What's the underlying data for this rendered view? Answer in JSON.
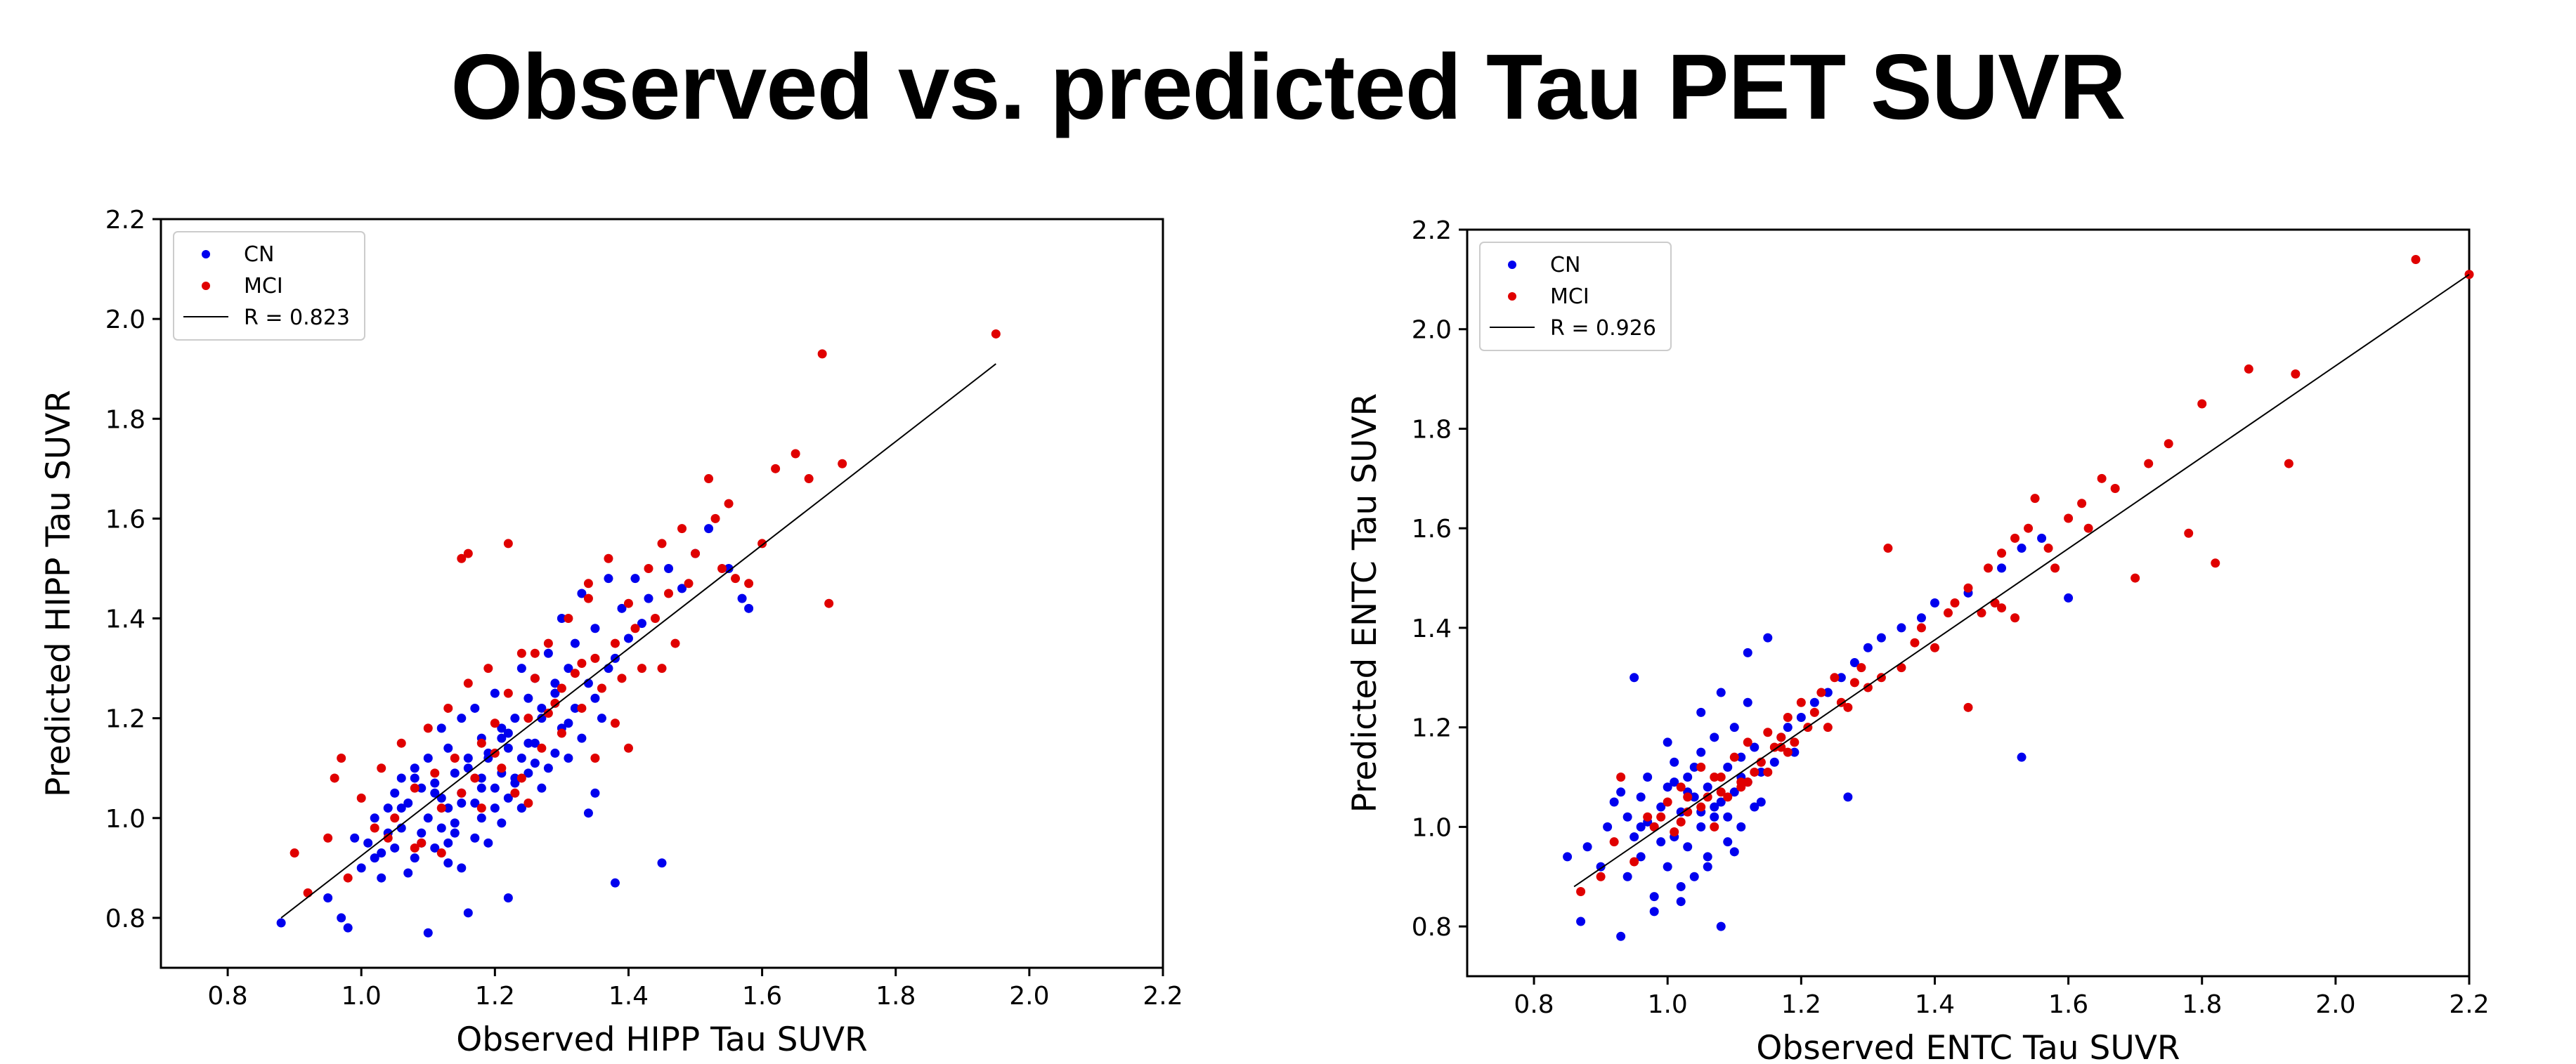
{
  "figure": {
    "title": "Observed vs. predicted Tau PET SUVR"
  },
  "colors": {
    "CN": "#0000ee",
    "MCI": "#e00000",
    "fit_line": "#000000",
    "axes": "#000000",
    "background": "#ffffff"
  },
  "chart_data": [
    {
      "type": "scatter",
      "title": "",
      "xlabel": "Observed HIPP Tau SUVR",
      "ylabel": "Predicted HIPP Tau SUVR",
      "xlim": [
        0.7,
        2.2
      ],
      "ylim": [
        0.7,
        2.2
      ],
      "xticks": [
        0.8,
        1.0,
        1.2,
        1.4,
        1.6,
        1.8,
        2.0,
        2.2
      ],
      "yticks": [
        0.8,
        1.0,
        1.2,
        1.4,
        1.6,
        1.8,
        2.0,
        2.2
      ],
      "grid": false,
      "legend": {
        "position": "top-left",
        "entries": [
          "CN",
          "MCI",
          "R = 0.823"
        ]
      },
      "fit_line": {
        "label": "R = 0.823",
        "x": [
          0.88,
          1.95
        ],
        "y": [
          0.8,
          1.91
        ]
      },
      "series": [
        {
          "name": "CN",
          "x": [
            0.88,
            0.95,
            0.97,
            0.98,
            0.99,
            1.0,
            1.01,
            1.02,
            1.02,
            1.03,
            1.04,
            1.04,
            1.05,
            1.05,
            1.06,
            1.06,
            1.07,
            1.07,
            1.08,
            1.08,
            1.09,
            1.09,
            1.1,
            1.1,
            1.1,
            1.11,
            1.11,
            1.12,
            1.12,
            1.12,
            1.13,
            1.13,
            1.13,
            1.14,
            1.14,
            1.15,
            1.15,
            1.15,
            1.16,
            1.16,
            1.17,
            1.17,
            1.17,
            1.18,
            1.18,
            1.18,
            1.19,
            1.19,
            1.2,
            1.2,
            1.2,
            1.21,
            1.21,
            1.21,
            1.22,
            1.22,
            1.22,
            1.23,
            1.23,
            1.24,
            1.24,
            1.24,
            1.25,
            1.25,
            1.26,
            1.26,
            1.27,
            1.27,
            1.28,
            1.28,
            1.29,
            1.29,
            1.3,
            1.3,
            1.31,
            1.31,
            1.32,
            1.32,
            1.33,
            1.33,
            1.34,
            1.35,
            1.35,
            1.36,
            1.37,
            1.38,
            1.38,
            1.39,
            1.4,
            1.41,
            1.42,
            1.43,
            1.45,
            1.46,
            1.48,
            1.5,
            1.52,
            1.55,
            1.57,
            1.58,
            1.22,
            1.27,
            1.18,
            1.08,
            1.14,
            1.19,
            1.24,
            1.31,
            1.37,
            1.11,
            1.21,
            1.29,
            1.34,
            1.26,
            1.16,
            1.06,
            1.03,
            1.13,
            1.23,
            1.09,
            1.35,
            1.25,
            1.15
          ],
          "y": [
            0.79,
            0.84,
            0.8,
            0.78,
            0.96,
            0.9,
            0.95,
            0.92,
            1.0,
            0.93,
            0.97,
            1.02,
            0.94,
            1.05,
            0.98,
            1.08,
            0.89,
            1.03,
            0.92,
            1.1,
            0.95,
            1.06,
            0.77,
            1.0,
            1.12,
            0.94,
            1.07,
            0.98,
            1.04,
            1.18,
            0.91,
            1.02,
            1.14,
            0.97,
            1.09,
            0.9,
            1.05,
            1.2,
            0.81,
            1.1,
            0.96,
            1.03,
            1.22,
            1.0,
            1.08,
            1.16,
            0.95,
            1.12,
            1.02,
            1.06,
            1.25,
            0.99,
            1.09,
            1.18,
            0.84,
            1.04,
            1.14,
            1.07,
            1.2,
            1.02,
            1.12,
            1.3,
            1.09,
            1.24,
            1.15,
            1.28,
            1.06,
            1.2,
            1.1,
            1.33,
            1.13,
            1.25,
            1.18,
            1.4,
            1.12,
            1.3,
            1.22,
            1.35,
            1.16,
            1.45,
            1.27,
            1.05,
            1.38,
            1.2,
            1.48,
            0.87,
            1.32,
            1.42,
            1.36,
            1.48,
            1.39,
            1.44,
            0.91,
            1.5,
            1.46,
            1.53,
            1.58,
            1.5,
            1.44,
            1.42,
            1.17,
            1.22,
            1.06,
            1.08,
            0.99,
            1.13,
            1.02,
            1.19,
            1.3,
            1.05,
            1.16,
            1.27,
            1.01,
            1.11,
            1.12,
            1.02,
            0.88,
            0.95,
            1.08,
            0.97,
            1.24,
            1.15,
            1.03
          ]
        },
        {
          "name": "MCI",
          "x": [
            0.9,
            0.92,
            0.95,
            0.97,
            0.98,
            1.0,
            1.02,
            1.03,
            1.05,
            1.06,
            1.08,
            1.09,
            1.1,
            1.11,
            1.12,
            1.13,
            1.14,
            1.15,
            1.16,
            1.17,
            1.18,
            1.19,
            1.2,
            1.21,
            1.22,
            1.23,
            1.24,
            1.25,
            1.26,
            1.27,
            1.28,
            1.29,
            1.3,
            1.31,
            1.32,
            1.33,
            1.34,
            1.35,
            1.36,
            1.37,
            1.38,
            1.39,
            1.4,
            1.41,
            1.42,
            1.43,
            1.44,
            1.45,
            1.46,
            1.47,
            1.48,
            1.49,
            1.5,
            1.52,
            1.53,
            1.54,
            1.55,
            1.56,
            1.58,
            1.6,
            1.62,
            1.65,
            1.67,
            1.69,
            1.7,
            1.72,
            1.95,
            1.15,
            1.16,
            1.22,
            1.28,
            1.33,
            1.38,
            1.2,
            1.25,
            1.3,
            1.35,
            1.12,
            1.18,
            1.4,
            1.45,
            1.24,
            1.08,
            1.04,
            0.96,
            1.26,
            1.34
          ],
          "y": [
            0.93,
            0.85,
            0.96,
            1.12,
            0.88,
            1.04,
            0.98,
            1.1,
            1.0,
            1.15,
            1.06,
            0.95,
            1.18,
            1.09,
            1.02,
            1.22,
            1.12,
            1.05,
            1.27,
            1.08,
            1.15,
            1.3,
            1.19,
            1.1,
            1.25,
            1.05,
            1.33,
            1.2,
            1.28,
            1.14,
            1.35,
            1.23,
            1.17,
            1.4,
            1.29,
            1.22,
            1.47,
            1.32,
            1.26,
            1.52,
            1.35,
            1.28,
            1.43,
            1.38,
            1.3,
            1.5,
            1.4,
            1.55,
            1.45,
            1.35,
            1.58,
            1.47,
            1.53,
            1.68,
            1.6,
            1.5,
            1.63,
            1.48,
            1.47,
            1.55,
            1.7,
            1.73,
            1.68,
            1.93,
            1.43,
            1.71,
            1.97,
            1.52,
            1.53,
            1.55,
            1.21,
            1.31,
            1.19,
            1.13,
            1.03,
            1.26,
            1.12,
            0.93,
            1.02,
            1.14,
            1.3,
            1.08,
            0.94,
            0.96,
            1.08,
            1.33,
            1.44
          ]
        }
      ]
    },
    {
      "type": "scatter",
      "title": "",
      "xlabel": "Observed ENTC Tau SUVR",
      "ylabel": "Predicted ENTC Tau SUVR",
      "xlim": [
        0.7,
        2.2
      ],
      "ylim": [
        0.7,
        2.2
      ],
      "xticks": [
        0.8,
        1.0,
        1.2,
        1.4,
        1.6,
        1.8,
        2.0,
        2.2
      ],
      "yticks": [
        0.8,
        1.0,
        1.2,
        1.4,
        1.6,
        1.8,
        2.0,
        2.2
      ],
      "grid": false,
      "legend": {
        "position": "top-left",
        "entries": [
          "CN",
          "MCI",
          "R = 0.926"
        ]
      },
      "fit_line": {
        "label": "R = 0.926",
        "x": [
          0.86,
          2.2
        ],
        "y": [
          0.88,
          2.11
        ]
      },
      "series": [
        {
          "name": "CN",
          "x": [
            0.85,
            0.87,
            0.88,
            0.9,
            0.91,
            0.92,
            0.93,
            0.94,
            0.94,
            0.95,
            0.96,
            0.96,
            0.97,
            0.98,
            0.98,
            0.99,
            1.0,
            1.0,
            1.01,
            1.01,
            1.02,
            1.02,
            1.03,
            1.03,
            1.04,
            1.04,
            1.05,
            1.05,
            1.06,
            1.06,
            1.07,
            1.07,
            1.08,
            1.08,
            1.09,
            1.09,
            1.1,
            1.1,
            1.11,
            1.11,
            1.12,
            1.12,
            1.13,
            1.13,
            1.14,
            1.15,
            1.16,
            1.17,
            1.18,
            1.19,
            1.2,
            1.22,
            1.24,
            1.26,
            1.28,
            1.3,
            1.32,
            1.35,
            1.38,
            1.4,
            1.45,
            1.5,
            1.53,
            1.56,
            1.6,
            0.95,
            1.0,
            1.05,
            1.08,
            1.12,
            1.02,
            0.98,
            1.06,
            1.1,
            1.04,
            0.93,
            1.27,
            1.53,
            0.97,
            1.14,
            1.01,
            1.09,
            0.99,
            1.07,
            1.03,
            1.11,
            0.96,
            1.05
          ],
          "y": [
            0.94,
            0.81,
            0.96,
            0.92,
            1.0,
            1.05,
            0.78,
            0.9,
            1.02,
            0.98,
            1.06,
            0.94,
            1.1,
            0.86,
            1.0,
            1.04,
            0.92,
            1.08,
            0.98,
            1.13,
            0.85,
            1.03,
            0.96,
            1.1,
            0.9,
            1.06,
            1.0,
            1.15,
            0.94,
            1.08,
            1.02,
            1.18,
            0.8,
            1.05,
            1.12,
            0.97,
            1.07,
            1.2,
            1.0,
            1.14,
            1.09,
            1.25,
            1.04,
            1.16,
            1.11,
            1.38,
            1.13,
            1.18,
            1.2,
            1.15,
            1.22,
            1.25,
            1.27,
            1.3,
            1.33,
            1.36,
            1.38,
            1.4,
            1.42,
            1.45,
            1.47,
            1.52,
            1.56,
            1.58,
            1.46,
            1.3,
            1.17,
            1.23,
            1.27,
            1.35,
            0.88,
            0.83,
            0.92,
            0.95,
            1.12,
            1.07,
            1.06,
            1.14,
            1.01,
            1.05,
            1.09,
            1.02,
            0.97,
            1.04,
            1.07,
            1.1,
            1.0,
            1.03
          ]
        },
        {
          "name": "MCI",
          "x": [
            0.87,
            0.9,
            0.92,
            0.93,
            0.95,
            0.97,
            0.98,
            1.0,
            1.01,
            1.02,
            1.03,
            1.05,
            1.06,
            1.07,
            1.08,
            1.09,
            1.1,
            1.11,
            1.12,
            1.13,
            1.14,
            1.15,
            1.16,
            1.17,
            1.18,
            1.19,
            1.2,
            1.21,
            1.22,
            1.23,
            1.24,
            1.25,
            1.26,
            1.27,
            1.28,
            1.29,
            1.3,
            1.32,
            1.33,
            1.35,
            1.37,
            1.38,
            1.4,
            1.42,
            1.43,
            1.45,
            1.47,
            1.48,
            1.49,
            1.5,
            1.52,
            1.54,
            1.55,
            1.57,
            1.58,
            1.6,
            1.62,
            1.63,
            1.65,
            1.67,
            1.7,
            1.72,
            1.75,
            1.78,
            1.8,
            1.82,
            1.87,
            1.93,
            1.94,
            2.12,
            2.2,
            1.45,
            1.5,
            1.52,
            1.02,
            1.05,
            1.08,
            1.12,
            1.15,
            1.18,
            0.99,
            1.03,
            1.07,
            1.11,
            1.14,
            1.17
          ],
          "y": [
            0.87,
            0.9,
            0.97,
            1.1,
            0.93,
            1.02,
            1.0,
            1.05,
            0.99,
            1.08,
            1.03,
            1.12,
            1.06,
            1.0,
            1.1,
            1.06,
            1.14,
            1.09,
            1.17,
            1.11,
            1.13,
            1.19,
            1.16,
            1.18,
            1.22,
            1.17,
            1.25,
            1.2,
            1.23,
            1.27,
            1.2,
            1.3,
            1.25,
            1.24,
            1.29,
            1.32,
            1.28,
            1.3,
            1.56,
            1.32,
            1.37,
            1.4,
            1.36,
            1.43,
            1.45,
            1.48,
            1.43,
            1.52,
            1.45,
            1.55,
            1.58,
            1.6,
            1.66,
            1.56,
            1.52,
            1.62,
            1.65,
            1.6,
            1.7,
            1.68,
            1.5,
            1.73,
            1.77,
            1.59,
            1.85,
            1.53,
            1.92,
            1.73,
            1.91,
            2.14,
            2.11,
            1.24,
            1.44,
            1.42,
            1.01,
            1.04,
            1.07,
            1.09,
            1.11,
            1.15,
            1.02,
            1.06,
            1.1,
            1.08,
            1.13,
            1.16
          ]
        }
      ]
    }
  ]
}
